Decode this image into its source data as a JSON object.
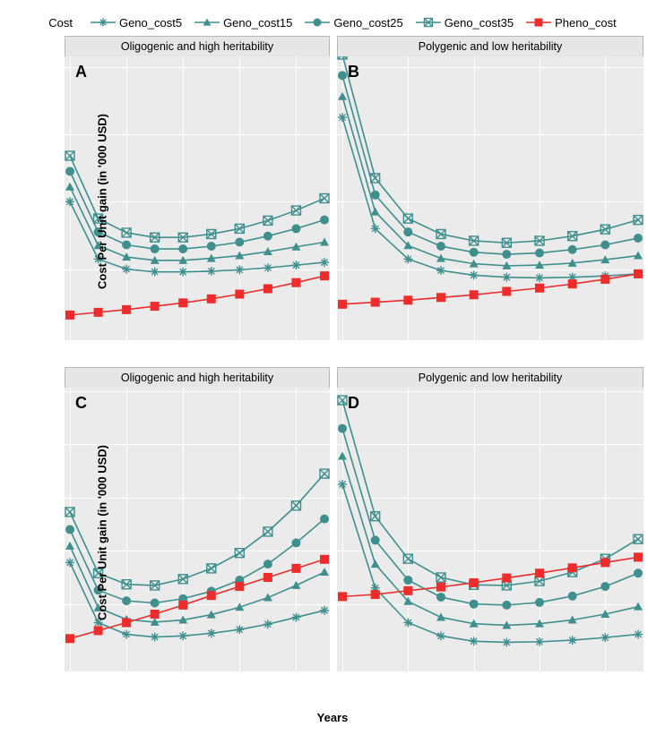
{
  "legend": {
    "title": "Cost",
    "title_fontsize": 13,
    "items": [
      {
        "label": "Geno_cost5",
        "color": "#3f8f8f",
        "marker": "asterisk"
      },
      {
        "label": "Geno_cost15",
        "color": "#3f8f8f",
        "marker": "triangle"
      },
      {
        "label": "Geno_cost25",
        "color": "#3f8f8f",
        "marker": "circle"
      },
      {
        "label": "Geno_cost35",
        "color": "#3f8f8f",
        "marker": "square-x"
      },
      {
        "label": "Pheno_cost",
        "color": "#ee2c2c",
        "marker": "square"
      }
    ]
  },
  "global": {
    "xlabel": "Years",
    "ylabel": "Cost Per Unit gain (in '000 USD)",
    "xvalues": [
      1,
      2,
      3,
      4,
      5,
      6,
      7,
      8,
      9,
      10
    ],
    "xticks": [
      1,
      3,
      5,
      7,
      9
    ],
    "panel_bg": "#ebebeb",
    "grid_color": "#ffffff",
    "strip_bg": "#e6e6e6",
    "strip_border": "#b7b7b7",
    "teal": "#3f8f8f",
    "red": "#ee2c2c",
    "line_width": 1.6,
    "marker_size": 5
  },
  "panels": [
    {
      "id": "A",
      "letter": "A",
      "row": 0,
      "col": 0,
      "title": "Oligogenic and high heritability",
      "ylim": [
        0,
        41
      ],
      "yticks": [
        10,
        20,
        30,
        40
      ],
      "series": {
        "Geno_cost5": [
          20.0,
          11.5,
          10.0,
          9.6,
          9.6,
          9.7,
          9.9,
          10.2,
          10.6,
          11.0
        ],
        "Geno_cost15": [
          22.2,
          13.5,
          11.8,
          11.3,
          11.3,
          11.6,
          12.0,
          12.6,
          13.3,
          14.0
        ],
        "Geno_cost25": [
          24.5,
          15.5,
          13.6,
          13.0,
          13.0,
          13.4,
          14.0,
          14.9,
          16.0,
          17.3
        ],
        "Geno_cost35": [
          26.8,
          17.5,
          15.4,
          14.7,
          14.7,
          15.2,
          16.0,
          17.2,
          18.7,
          20.5
        ],
        "Pheno_cost": [
          3.2,
          3.6,
          4.0,
          4.5,
          5.0,
          5.6,
          6.3,
          7.1,
          8.0,
          9.0
        ]
      }
    },
    {
      "id": "B",
      "letter": "B",
      "row": 0,
      "col": 1,
      "title": "Polygenic and low heritability",
      "ylim": [
        0,
        41
      ],
      "yticks": [
        10,
        20,
        30,
        40
      ],
      "series": {
        "Geno_cost5": [
          32.5,
          16.0,
          11.5,
          9.8,
          9.1,
          8.8,
          8.7,
          8.8,
          9.0,
          9.3
        ],
        "Geno_cost15": [
          35.6,
          18.5,
          13.5,
          11.6,
          10.8,
          10.5,
          10.6,
          10.9,
          11.4,
          12.0
        ],
        "Geno_cost25": [
          38.7,
          21.0,
          15.5,
          13.4,
          12.5,
          12.2,
          12.4,
          12.9,
          13.6,
          14.6
        ],
        "Geno_cost35": [
          41.8,
          23.5,
          17.5,
          15.2,
          14.2,
          13.9,
          14.2,
          14.9,
          15.9,
          17.3
        ],
        "Pheno_cost": [
          4.8,
          5.1,
          5.4,
          5.8,
          6.2,
          6.7,
          7.2,
          7.8,
          8.5,
          9.3
        ]
      }
    },
    {
      "id": "C",
      "letter": "C",
      "row": 1,
      "col": 0,
      "title": "Oligogenic and high heritability",
      "ylim": [
        8,
        60
      ],
      "yticks": [
        20,
        30,
        40,
        50,
        60
      ],
      "series": {
        "Geno_cost5": [
          27.8,
          16.5,
          14.3,
          13.8,
          14.0,
          14.5,
          15.2,
          16.2,
          17.5,
          18.8
        ],
        "Geno_cost15": [
          30.9,
          19.3,
          17.1,
          16.6,
          17.0,
          18.0,
          19.4,
          21.2,
          23.5,
          26.0
        ],
        "Geno_cost25": [
          34.0,
          22.6,
          20.6,
          20.2,
          21.0,
          22.4,
          24.5,
          27.5,
          31.5,
          36.0
        ],
        "Geno_cost35": [
          37.3,
          25.8,
          23.7,
          23.5,
          24.7,
          26.7,
          29.6,
          33.6,
          38.5,
          44.5
        ],
        "Pheno_cost": [
          13.5,
          15.0,
          16.5,
          18.1,
          19.8,
          21.6,
          23.3,
          25.0,
          26.7,
          28.4
        ]
      }
    },
    {
      "id": "D",
      "letter": "D",
      "row": 1,
      "col": 1,
      "title": "Polygenic and low heritability",
      "ylim": [
        8,
        60
      ],
      "yticks": [
        20,
        30,
        40,
        50,
        60
      ],
      "series": {
        "Geno_cost5": [
          42.5,
          23.0,
          16.5,
          14.0,
          13.0,
          12.8,
          12.9,
          13.2,
          13.7,
          14.3
        ],
        "Geno_cost15": [
          47.8,
          27.5,
          20.5,
          17.5,
          16.3,
          16.0,
          16.3,
          17.0,
          18.1,
          19.5
        ],
        "Geno_cost25": [
          53.0,
          32.0,
          24.5,
          21.3,
          20.0,
          19.8,
          20.3,
          21.5,
          23.3,
          25.8
        ],
        "Geno_cost35": [
          58.3,
          36.5,
          28.5,
          25.0,
          23.6,
          23.5,
          24.3,
          26.0,
          28.5,
          32.2
        ],
        "Pheno_cost": [
          21.4,
          21.8,
          22.5,
          23.2,
          24.0,
          24.9,
          25.8,
          26.8,
          27.8,
          28.8
        ]
      }
    }
  ]
}
